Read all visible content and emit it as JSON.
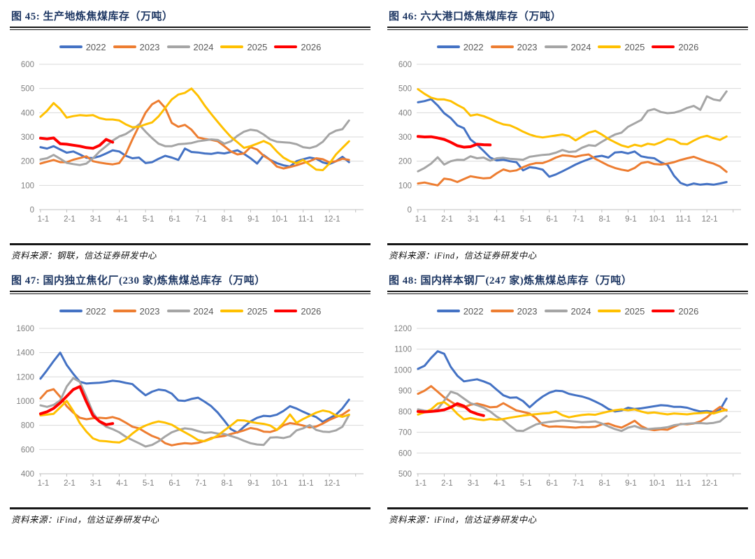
{
  "chart_data": [
    {
      "type": "line",
      "title": "图 45: 生产地炼焦煤库存（万吨）",
      "source": "资料来源：钢联，信达证券研发中心",
      "xlabel": "",
      "ylabel": "",
      "xlim": [
        0.95,
        13.3
      ],
      "ylim": [
        0,
        600
      ],
      "ytick_step": 100,
      "x_tick_labels": [
        "1-1",
        "2-1",
        "3-1",
        "4-1",
        "5-1",
        "6-1",
        "7-1",
        "8-1",
        "9-1",
        "10-1",
        "11-1",
        "12-1"
      ],
      "grid": true,
      "legend_position": "top",
      "series": [
        {
          "name": "2022",
          "color": "#4472C4",
          "x0": 1,
          "dx": 0.25,
          "values": [
            258,
            252,
            262,
            248,
            235,
            240,
            228,
            214,
            213,
            220,
            232,
            245,
            240,
            222,
            212,
            215,
            192,
            196,
            210,
            222,
            215,
            205,
            252,
            238,
            236,
            232,
            230,
            235,
            232,
            238,
            245,
            230,
            212,
            190,
            225,
            205,
            192,
            183,
            178,
            200,
            208,
            215,
            210,
            195,
            188,
            200,
            218,
            196
          ]
        },
        {
          "name": "2023",
          "color": "#ED7D31",
          "x0": 1,
          "dx": 0.25,
          "values": [
            190,
            198,
            205,
            196,
            196,
            206,
            213,
            220,
            200,
            194,
            190,
            187,
            192,
            230,
            290,
            345,
            400,
            435,
            450,
            420,
            358,
            342,
            350,
            330,
            298,
            292,
            288,
            282,
            262,
            240,
            228,
            232,
            258,
            248,
            222,
            205,
            178,
            170,
            176,
            183,
            192,
            200,
            212,
            208,
            195,
            200,
            210,
            205
          ]
        },
        {
          "name": "2024",
          "color": "#A5A5A5",
          "x0": 1,
          "dx": 0.25,
          "values": [
            207,
            212,
            226,
            210,
            193,
            188,
            184,
            190,
            212,
            240,
            262,
            285,
            302,
            312,
            330,
            352,
            322,
            295,
            272,
            262,
            262,
            270,
            272,
            275,
            282,
            286,
            290,
            288,
            272,
            282,
            305,
            322,
            330,
            326,
            310,
            290,
            280,
            278,
            276,
            270,
            258,
            254,
            262,
            280,
            312,
            326,
            332,
            368
          ]
        },
        {
          "name": "2025",
          "color": "#FFC000",
          "x0": 1,
          "dx": 0.25,
          "values": [
            383,
            408,
            440,
            415,
            380,
            386,
            390,
            388,
            390,
            378,
            372,
            372,
            368,
            352,
            340,
            342,
            352,
            360,
            385,
            420,
            455,
            475,
            482,
            500,
            470,
            430,
            395,
            362,
            330,
            300,
            278,
            255,
            262,
            272,
            283,
            270,
            240,
            215,
            200,
            192,
            205,
            185,
            165,
            163,
            190,
            228,
            255,
            282
          ]
        },
        {
          "name": "2026",
          "color": "#FF0000",
          "x0": 1,
          "dx": 0.25,
          "values": [
            295,
            292,
            296,
            272,
            270,
            266,
            262,
            256,
            253,
            265,
            290,
            278
          ]
        }
      ]
    },
    {
      "type": "line",
      "title": "图 46: 六大港口炼焦煤库存（万吨）",
      "source": "资料来源：iFind，信达证券研发中心",
      "xlabel": "",
      "ylabel": "",
      "xlim": [
        0.95,
        13.3
      ],
      "ylim": [
        0,
        600
      ],
      "ytick_step": 100,
      "x_tick_labels": [
        "1-1",
        "2-1",
        "3-1",
        "4-1",
        "5-1",
        "6-1",
        "7-1",
        "8-1",
        "9-1",
        "10-1",
        "11-1",
        "12-1"
      ],
      "grid": true,
      "legend_position": "top",
      "series": [
        {
          "name": "2022",
          "color": "#4472C4",
          "x0": 1,
          "dx": 0.25,
          "values": [
            443,
            448,
            456,
            430,
            398,
            378,
            348,
            336,
            290,
            268,
            242,
            215,
            203,
            206,
            200,
            196,
            162,
            175,
            172,
            165,
            136,
            145,
            158,
            172,
            186,
            198,
            208,
            218,
            222,
            215,
            236,
            238,
            232,
            240,
            220,
            215,
            212,
            195,
            185,
            140,
            110,
            100,
            108,
            103,
            106,
            103,
            108,
            114
          ]
        },
        {
          "name": "2023",
          "color": "#ED7D31",
          "x0": 1,
          "dx": 0.25,
          "values": [
            108,
            112,
            106,
            100,
            128,
            124,
            114,
            126,
            138,
            133,
            129,
            131,
            150,
            166,
            158,
            162,
            175,
            186,
            192,
            192,
            202,
            215,
            224,
            222,
            218,
            224,
            228,
            210,
            196,
            182,
            172,
            165,
            160,
            172,
            192,
            197,
            188,
            186,
            190,
            196,
            205,
            212,
            218,
            208,
            198,
            190,
            178,
            156
          ]
        },
        {
          "name": "2024",
          "color": "#A5A5A5",
          "x0": 1,
          "dx": 0.25,
          "values": [
            158,
            172,
            190,
            216,
            186,
            200,
            206,
            205,
            220,
            212,
            215,
            202,
            212,
            214,
            210,
            208,
            206,
            218,
            222,
            226,
            228,
            235,
            246,
            238,
            240,
            256,
            266,
            263,
            280,
            296,
            310,
            318,
            342,
            356,
            370,
            408,
            415,
            403,
            398,
            400,
            408,
            420,
            428,
            412,
            468,
            455,
            450,
            488
          ]
        },
        {
          "name": "2025",
          "color": "#FFC000",
          "x0": 1,
          "dx": 0.25,
          "values": [
            497,
            478,
            462,
            455,
            455,
            448,
            432,
            418,
            388,
            393,
            386,
            375,
            362,
            352,
            348,
            336,
            322,
            310,
            302,
            298,
            302,
            306,
            310,
            304,
            286,
            302,
            318,
            325,
            310,
            292,
            278,
            265,
            258,
            268,
            262,
            272,
            268,
            278,
            292,
            288,
            272,
            270,
            285,
            298,
            305,
            295,
            288,
            302
          ]
        },
        {
          "name": "2026",
          "color": "#FF0000",
          "x0": 1,
          "dx": 0.25,
          "values": [
            302,
            300,
            301,
            296,
            290,
            278,
            264,
            258,
            260,
            270,
            268,
            267
          ]
        }
      ]
    },
    {
      "type": "line",
      "title": "图 47: 国内独立焦化厂(230 家)炼焦煤总库存（万吨）",
      "source": "资料来源：iFind，信达证券研发中心",
      "xlabel": "",
      "ylabel": "",
      "xlim": [
        0.95,
        13.3
      ],
      "ylim": [
        400,
        1600
      ],
      "ytick_step": 200,
      "x_tick_labels": [
        "1-1",
        "2-1",
        "3-1",
        "4-1",
        "5-1",
        "6-1",
        "7-1",
        "8-1",
        "9-1",
        "10-1",
        "11-1",
        "12-1"
      ],
      "grid": true,
      "legend_position": "top",
      "series": [
        {
          "name": "2022",
          "color": "#4472C4",
          "x0": 1,
          "dx": 0.25,
          "values": [
            1185,
            1255,
            1330,
            1400,
            1298,
            1225,
            1160,
            1145,
            1148,
            1152,
            1158,
            1168,
            1162,
            1150,
            1140,
            1092,
            1048,
            1078,
            1095,
            1088,
            1062,
            1005,
            1002,
            1018,
            1028,
            995,
            958,
            905,
            838,
            768,
            740,
            788,
            832,
            862,
            878,
            875,
            888,
            918,
            958,
            938,
            912,
            888,
            868,
            828,
            858,
            888,
            940,
            1012
          ]
        },
        {
          "name": "2023",
          "color": "#ED7D31",
          "x0": 1,
          "dx": 0.25,
          "values": [
            1022,
            1082,
            1098,
            1035,
            958,
            905,
            862,
            850,
            858,
            862,
            858,
            868,
            852,
            822,
            788,
            775,
            742,
            712,
            692,
            652,
            635,
            645,
            652,
            648,
            655,
            672,
            695,
            705,
            712,
            728,
            742,
            758,
            778,
            768,
            748,
            745,
            762,
            800,
            818,
            810,
            798,
            782,
            790,
            815,
            845,
            868,
            888,
            925
          ]
        },
        {
          "name": "2024",
          "color": "#A5A5A5",
          "x0": 1,
          "dx": 0.25,
          "values": [
            965,
            952,
            968,
            1005,
            1120,
            1190,
            1158,
            1035,
            905,
            828,
            788,
            768,
            742,
            705,
            678,
            652,
            625,
            638,
            668,
            708,
            742,
            762,
            775,
            768,
            752,
            738,
            742,
            732,
            728,
            712,
            695,
            672,
            652,
            642,
            638,
            698,
            702,
            695,
            708,
            758,
            775,
            802,
            762,
            748,
            745,
            758,
            788,
            885
          ]
        },
        {
          "name": "2025",
          "color": "#FFC000",
          "x0": 1,
          "dx": 0.25,
          "values": [
            882,
            888,
            895,
            948,
            1002,
            918,
            818,
            748,
            692,
            672,
            668,
            662,
            658,
            685,
            732,
            772,
            798,
            818,
            832,
            822,
            805,
            772,
            742,
            712,
            678,
            668,
            688,
            715,
            758,
            798,
            842,
            840,
            828,
            818,
            812,
            798,
            762,
            818,
            890,
            820,
            852,
            878,
            905,
            922,
            912,
            882,
            870,
            888
          ]
        },
        {
          "name": "2026",
          "color": "#FF0000",
          "x0": 1,
          "dx": 0.25,
          "values": [
            895,
            912,
            940,
            985,
            1040,
            1095,
            1120,
            995,
            880,
            832,
            805,
            815
          ]
        }
      ]
    },
    {
      "type": "line",
      "title": "图 48: 国内样本钢厂(247 家)炼焦煤总库存（万吨）",
      "source": "资料来源：iFind，信达证券研发中心",
      "xlabel": "",
      "ylabel": "",
      "xlim": [
        0.95,
        13.3
      ],
      "ylim": [
        500,
        1200
      ],
      "ytick_step": 100,
      "x_tick_labels": [
        "1-1",
        "2-1",
        "3-1",
        "4-1",
        "5-1",
        "6-1",
        "7-1",
        "8-1",
        "9-1",
        "10-1",
        "11-1",
        "12-1"
      ],
      "grid": true,
      "legend_position": "top",
      "series": [
        {
          "name": "2022",
          "color": "#4472C4",
          "x0": 1,
          "dx": 0.25,
          "values": [
            1005,
            1020,
            1058,
            1090,
            1078,
            1015,
            972,
            945,
            950,
            955,
            945,
            932,
            905,
            878,
            866,
            868,
            850,
            820,
            848,
            872,
            890,
            900,
            898,
            885,
            878,
            872,
            862,
            848,
            832,
            812,
            800,
            805,
            818,
            812,
            815,
            820,
            825,
            830,
            828,
            822,
            822,
            818,
            808,
            800,
            802,
            798,
            808,
            862
          ]
        },
        {
          "name": "2023",
          "color": "#ED7D31",
          "x0": 1,
          "dx": 0.25,
          "values": [
            885,
            900,
            922,
            895,
            868,
            848,
            828,
            820,
            832,
            838,
            830,
            820,
            822,
            840,
            822,
            805,
            798,
            790,
            768,
            735,
            726,
            728,
            726,
            724,
            722,
            725,
            724,
            726,
            738,
            742,
            730,
            722,
            738,
            755,
            730,
            715,
            710,
            714,
            712,
            726,
            740,
            738,
            742,
            752,
            772,
            800,
            822,
            805
          ]
        },
        {
          "name": "2024",
          "color": "#A5A5A5",
          "x0": 1,
          "dx": 0.25,
          "values": [
            810,
            804,
            800,
            812,
            852,
            895,
            885,
            862,
            840,
            830,
            818,
            800,
            775,
            758,
            732,
            708,
            706,
            722,
            738,
            745,
            750,
            753,
            756,
            754,
            751,
            748,
            750,
            752,
            742,
            728,
            715,
            706,
            722,
            730,
            718,
            715,
            718,
            720,
            724,
            734,
            738,
            741,
            743,
            744,
            742,
            745,
            752,
            778
          ]
        },
        {
          "name": "2025",
          "color": "#FFC000",
          "x0": 1,
          "dx": 0.25,
          "values": [
            785,
            796,
            810,
            838,
            845,
            822,
            788,
            762,
            768,
            762,
            758,
            764,
            760,
            764,
            770,
            775,
            780,
            784,
            787,
            790,
            792,
            800,
            782,
            772,
            778,
            783,
            786,
            784,
            792,
            800,
            806,
            810,
            806,
            810,
            800,
            792,
            795,
            790,
            786,
            790,
            788,
            786,
            790,
            792,
            795,
            790,
            800,
            808
          ]
        },
        {
          "name": "2026",
          "color": "#FF0000",
          "x0": 1,
          "dx": 0.25,
          "values": [
            800,
            798,
            800,
            803,
            808,
            820,
            838,
            826,
            800,
            788,
            780
          ]
        }
      ]
    }
  ]
}
